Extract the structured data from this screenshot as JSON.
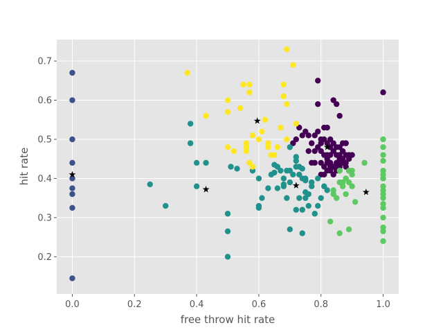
{
  "chart_data": {
    "type": "scatter",
    "title": "",
    "xlabel": "free throw hit rate",
    "ylabel": "hit rate",
    "xlim": [
      -0.05,
      1.05
    ],
    "ylim": [
      0.105,
      0.755
    ],
    "x_ticks": [
      {
        "value": 0.0,
        "label": "0.0"
      },
      {
        "value": 0.2,
        "label": "0.2"
      },
      {
        "value": 0.4,
        "label": "0.4"
      },
      {
        "value": 0.6,
        "label": "0.6"
      },
      {
        "value": 0.8,
        "label": "0.8"
      },
      {
        "value": 1.0,
        "label": "1.0"
      }
    ],
    "y_ticks": [
      {
        "value": 0.2,
        "label": "0.2"
      },
      {
        "value": 0.3,
        "label": "0.3"
      },
      {
        "value": 0.4,
        "label": "0.4"
      },
      {
        "value": 0.5,
        "label": "0.5"
      },
      {
        "value": 0.6,
        "label": "0.6"
      },
      {
        "value": 0.7,
        "label": "0.7"
      }
    ],
    "grid": true,
    "colors": {
      "background": "#e5e5e5",
      "grid": "#ffffff",
      "cluster_0": "#440154",
      "cluster_1": "#3b528b",
      "cluster_2": "#21918c",
      "cluster_3": "#5ec962",
      "cluster_4": "#fde725",
      "centroid": "#000000"
    },
    "series": [
      {
        "cluster": 0,
        "color": "#440154",
        "x": [
          0.79,
          0.82,
          0.83,
          0.84,
          0.85,
          0.86,
          0.87,
          0.88,
          0.89,
          0.8,
          0.81,
          0.82,
          0.83,
          0.84,
          0.85,
          0.86,
          0.87,
          0.88,
          0.9,
          0.78,
          0.8,
          0.81,
          0.82,
          0.83,
          0.84,
          0.85,
          0.86,
          0.87,
          0.88,
          0.89,
          0.76,
          0.77,
          0.78,
          0.79,
          0.8,
          0.81,
          0.82,
          0.83,
          0.84,
          0.85,
          0.86,
          0.87,
          0.82,
          0.83,
          0.84,
          0.85,
          0.86,
          0.88,
          0.74,
          0.75,
          0.76,
          0.78,
          0.79,
          0.8,
          0.71,
          0.72,
          0.73,
          0.84,
          0.85,
          0.86,
          0.77,
          0.8,
          0.81,
          0.82,
          0.83,
          0.86,
          0.89,
          0.87,
          0.79,
          0.81,
          0.88,
          1.0
        ],
        "y": [
          0.65,
          0.53,
          0.5,
          0.6,
          0.59,
          0.56,
          0.49,
          0.49,
          0.45,
          0.47,
          0.46,
          0.46,
          0.46,
          0.47,
          0.46,
          0.48,
          0.47,
          0.46,
          0.46,
          0.44,
          0.44,
          0.43,
          0.44,
          0.43,
          0.43,
          0.44,
          0.45,
          0.44,
          0.43,
          0.42,
          0.47,
          0.49,
          0.47,
          0.48,
          0.49,
          0.5,
          0.49,
          0.48,
          0.49,
          0.48,
          0.46,
          0.45,
          0.42,
          0.42,
          0.41,
          0.43,
          0.44,
          0.49,
          0.51,
          0.52,
          0.51,
          0.51,
          0.52,
          0.5,
          0.49,
          0.5,
          0.53,
          0.43,
          0.42,
          0.43,
          0.44,
          0.41,
          0.41,
          0.45,
          0.44,
          0.42,
          0.46,
          0.45,
          0.59,
          0.53,
          0.44,
          0.62
        ]
      },
      {
        "cluster": 1,
        "color": "#3b528b",
        "x": [
          0,
          0,
          0,
          0,
          0,
          0,
          0,
          0,
          0
        ],
        "y": [
          0.67,
          0.6,
          0.5,
          0.44,
          0.4,
          0.375,
          0.36,
          0.325,
          0.145
        ]
      },
      {
        "cluster": 2,
        "color": "#21918c",
        "x": [
          0.38,
          0.38,
          0.4,
          0.43,
          0.4,
          0.25,
          0.3,
          0.5,
          0.5,
          0.5,
          0.51,
          0.53,
          0.58,
          0.6,
          0.6,
          0.61,
          0.63,
          0.64,
          0.65,
          0.66,
          0.66,
          0.67,
          0.68,
          0.69,
          0.7,
          0.7,
          0.71,
          0.72,
          0.72,
          0.73,
          0.73,
          0.74,
          0.74,
          0.75,
          0.75,
          0.76,
          0.76,
          0.77,
          0.78,
          0.79,
          0.69,
          0.7,
          0.72,
          0.73,
          0.74,
          0.75,
          0.77,
          0.79,
          0.6,
          0.65,
          0.68,
          0.81,
          0.82,
          0.8,
          0.75,
          0.72,
          0.7,
          0.74,
          0.68
        ],
        "y": [
          0.54,
          0.49,
          0.44,
          0.44,
          0.38,
          0.385,
          0.33,
          0.31,
          0.265,
          0.2,
          0.43,
          0.425,
          0.42,
          0.4,
          0.33,
          0.35,
          0.375,
          0.41,
          0.415,
          0.43,
          0.375,
          0.42,
          0.38,
          0.35,
          0.42,
          0.27,
          0.41,
          0.43,
          0.32,
          0.41,
          0.35,
          0.4,
          0.32,
          0.35,
          0.4,
          0.36,
          0.33,
          0.39,
          0.31,
          0.33,
          0.42,
          0.48,
          0.445,
          0.43,
          0.425,
          0.395,
          0.38,
          0.4,
          0.325,
          0.435,
          0.4,
          0.38,
          0.37,
          0.35,
          0.365,
          0.455,
          0.39,
          0.26,
          0.385
        ]
      },
      {
        "cluster": 3,
        "color": "#5ec962",
        "x": [
          0.83,
          0.84,
          0.85,
          0.86,
          0.87,
          0.88,
          0.89,
          0.9,
          0.91,
          0.94,
          0.86,
          0.87,
          0.88,
          0.89,
          0.9,
          0.84,
          0.86,
          0.88,
          0.89,
          0.9,
          1.0,
          1.0,
          1.0,
          1.0,
          1.0,
          1.0,
          1.0,
          1.0,
          1.0,
          1.0,
          1.0,
          1.0,
          1.0,
          1.0,
          1.0,
          1.0,
          1.0,
          1.0
        ],
        "y": [
          0.29,
          0.36,
          0.35,
          0.39,
          0.38,
          0.4,
          0.39,
          0.42,
          0.34,
          0.44,
          0.26,
          0.39,
          0.4,
          0.27,
          0.38,
          0.37,
          0.42,
          0.36,
          0.42,
          0.41,
          0.5,
          0.48,
          0.46,
          0.445,
          0.42,
          0.41,
          0.4,
          0.37,
          0.35,
          0.335,
          0.325,
          0.3,
          0.275,
          0.265,
          0.24,
          0.4,
          0.38,
          0.36
        ]
      },
      {
        "cluster": 4,
        "color": "#fde725",
        "x": [
          0.37,
          0.43,
          0.5,
          0.5,
          0.5,
          0.52,
          0.54,
          0.55,
          0.56,
          0.56,
          0.56,
          0.57,
          0.57,
          0.58,
          0.58,
          0.6,
          0.61,
          0.62,
          0.63,
          0.64,
          0.65,
          0.66,
          0.67,
          0.68,
          0.68,
          0.69,
          0.69,
          0.69,
          0.71,
          0.72,
          0.57,
          0.63
        ],
        "y": [
          0.67,
          0.56,
          0.6,
          0.57,
          0.48,
          0.47,
          0.58,
          0.64,
          0.48,
          0.49,
          0.47,
          0.64,
          0.62,
          0.51,
          0.43,
          0.5,
          0.52,
          0.55,
          0.48,
          0.46,
          0.46,
          0.48,
          0.53,
          0.64,
          0.61,
          0.59,
          0.73,
          0.5,
          0.69,
          0.54,
          0.44,
          0.49
        ]
      }
    ],
    "centroids": {
      "marker": "star",
      "color": "#000000",
      "x": [
        0.0,
        0.43,
        0.595,
        0.72,
        0.82,
        0.945
      ],
      "y": [
        0.41,
        0.372,
        0.547,
        0.382,
        0.48,
        0.365
      ]
    }
  }
}
